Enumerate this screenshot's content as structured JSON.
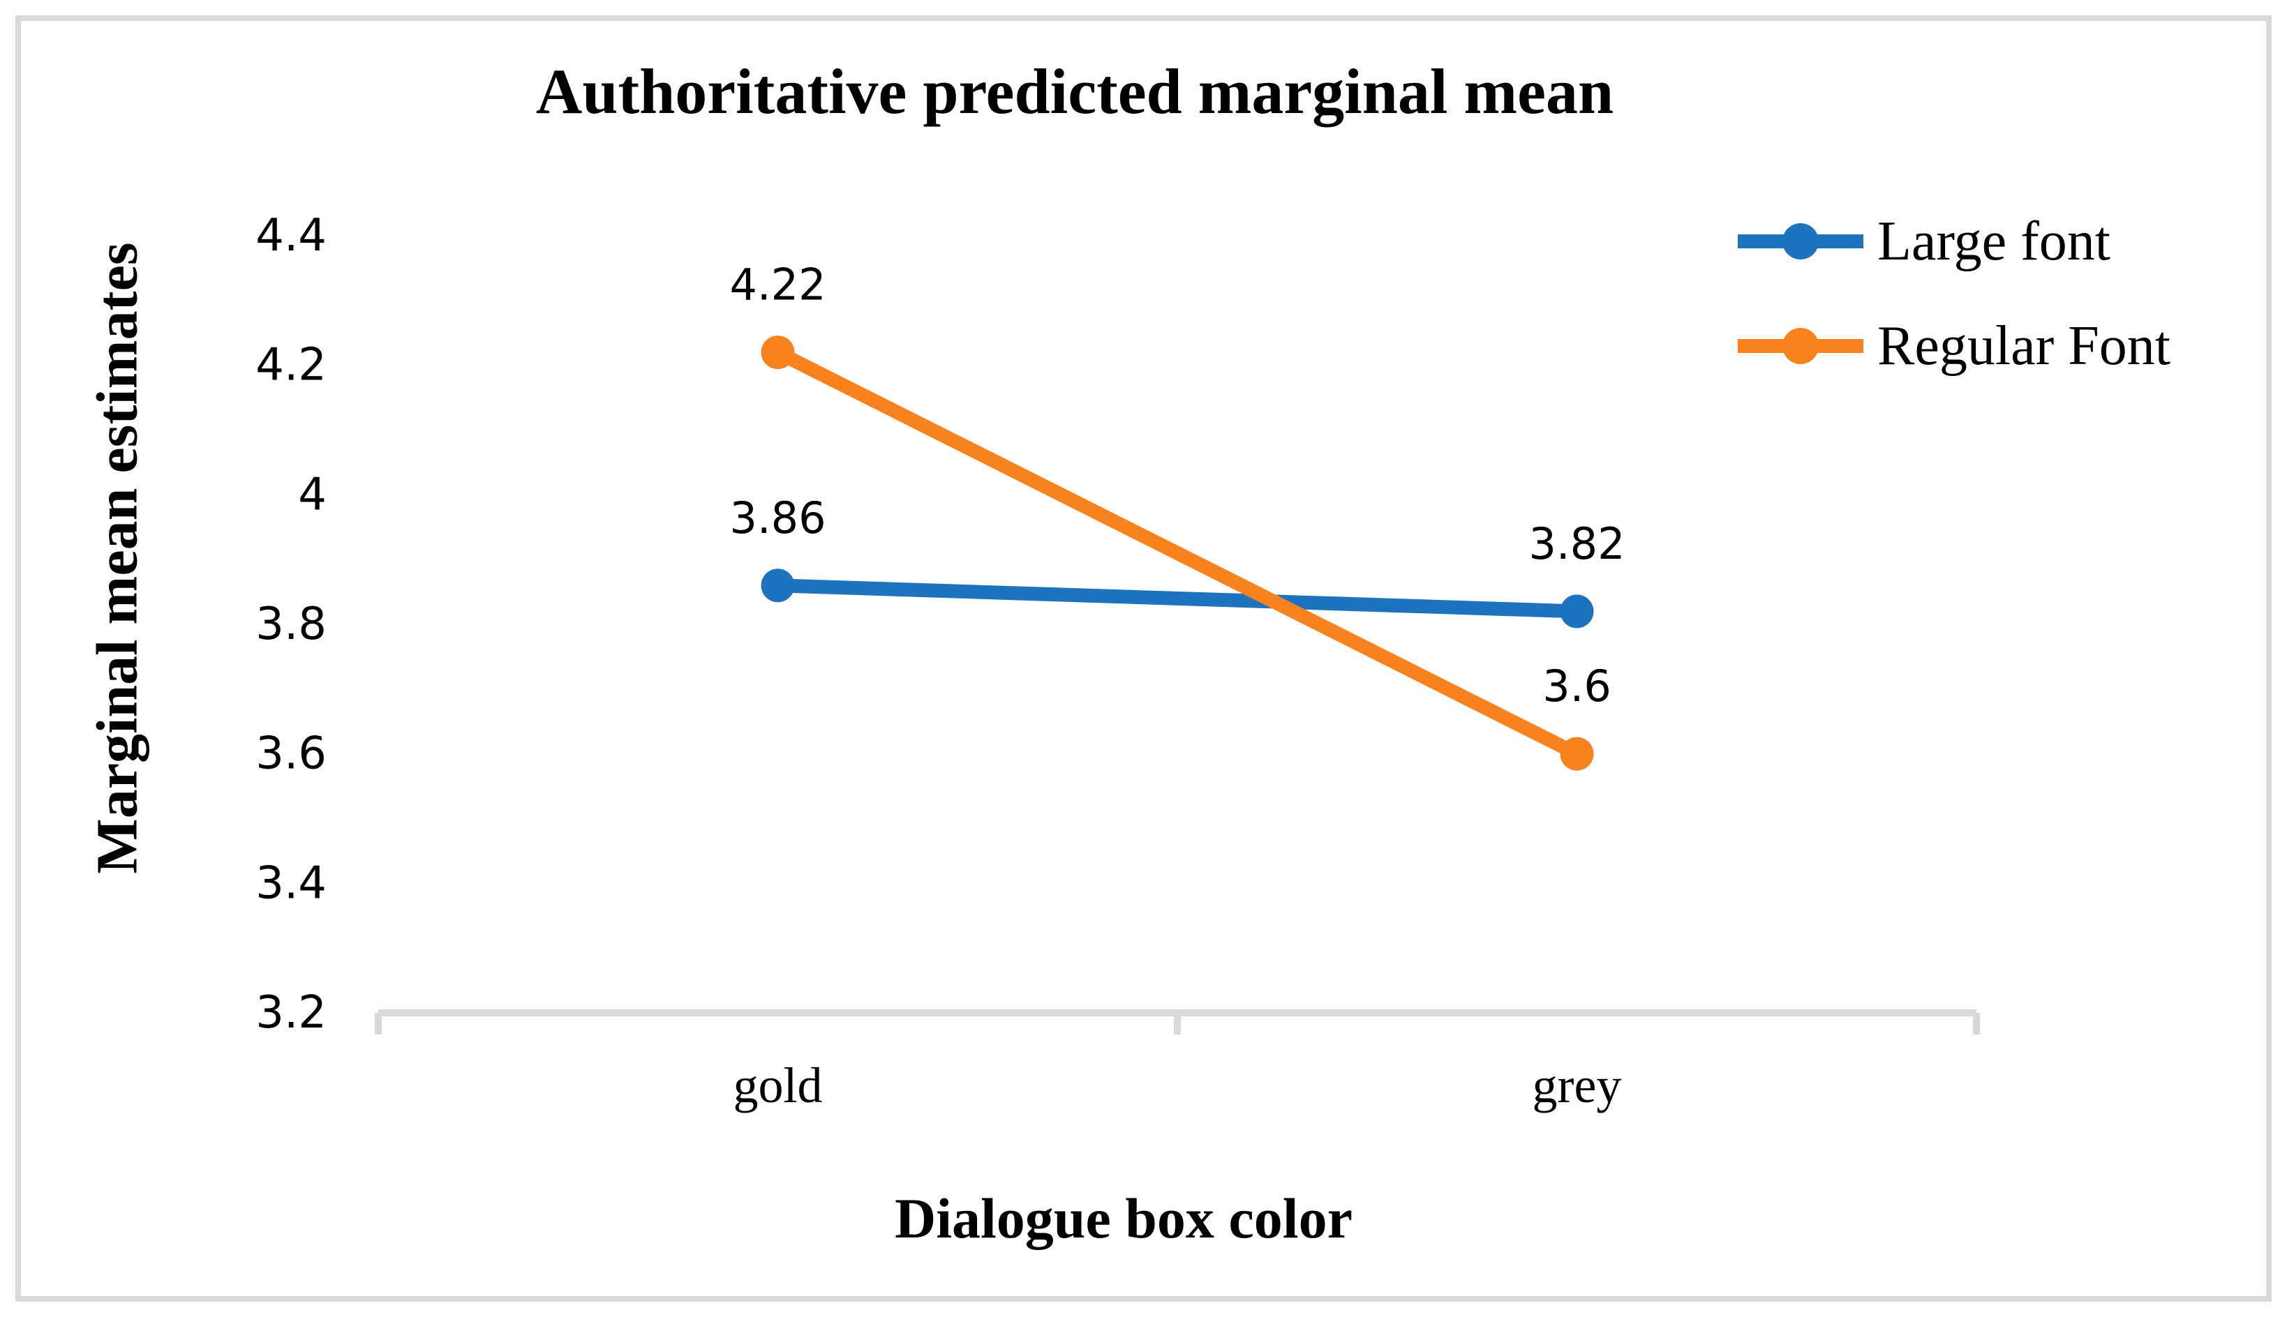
{
  "chart_data": {
    "type": "line",
    "title": "Authoritative predicted marginal mean",
    "xlabel": "Dialogue box color",
    "ylabel": "Marginal mean estimates",
    "categories": [
      "gold",
      "grey"
    ],
    "series": [
      {
        "name": "Large font",
        "color": "#1E73BE",
        "values": [
          3.86,
          3.82
        ],
        "data_labels": [
          "3.86",
          "3.82"
        ]
      },
      {
        "name": "Regular Font",
        "color": "#F8821E",
        "values": [
          4.22,
          3.6
        ],
        "data_labels": [
          "4.22",
          "3.6"
        ]
      }
    ],
    "y_ticks": [
      "4.4",
      "4.2",
      "4",
      "3.8",
      "3.6",
      "3.4",
      "3.2"
    ],
    "ylim": [
      3.2,
      4.4
    ],
    "grid": false,
    "legend_position": "top-right",
    "axis_color": "#D9D9D9",
    "text_color": "#000000"
  }
}
